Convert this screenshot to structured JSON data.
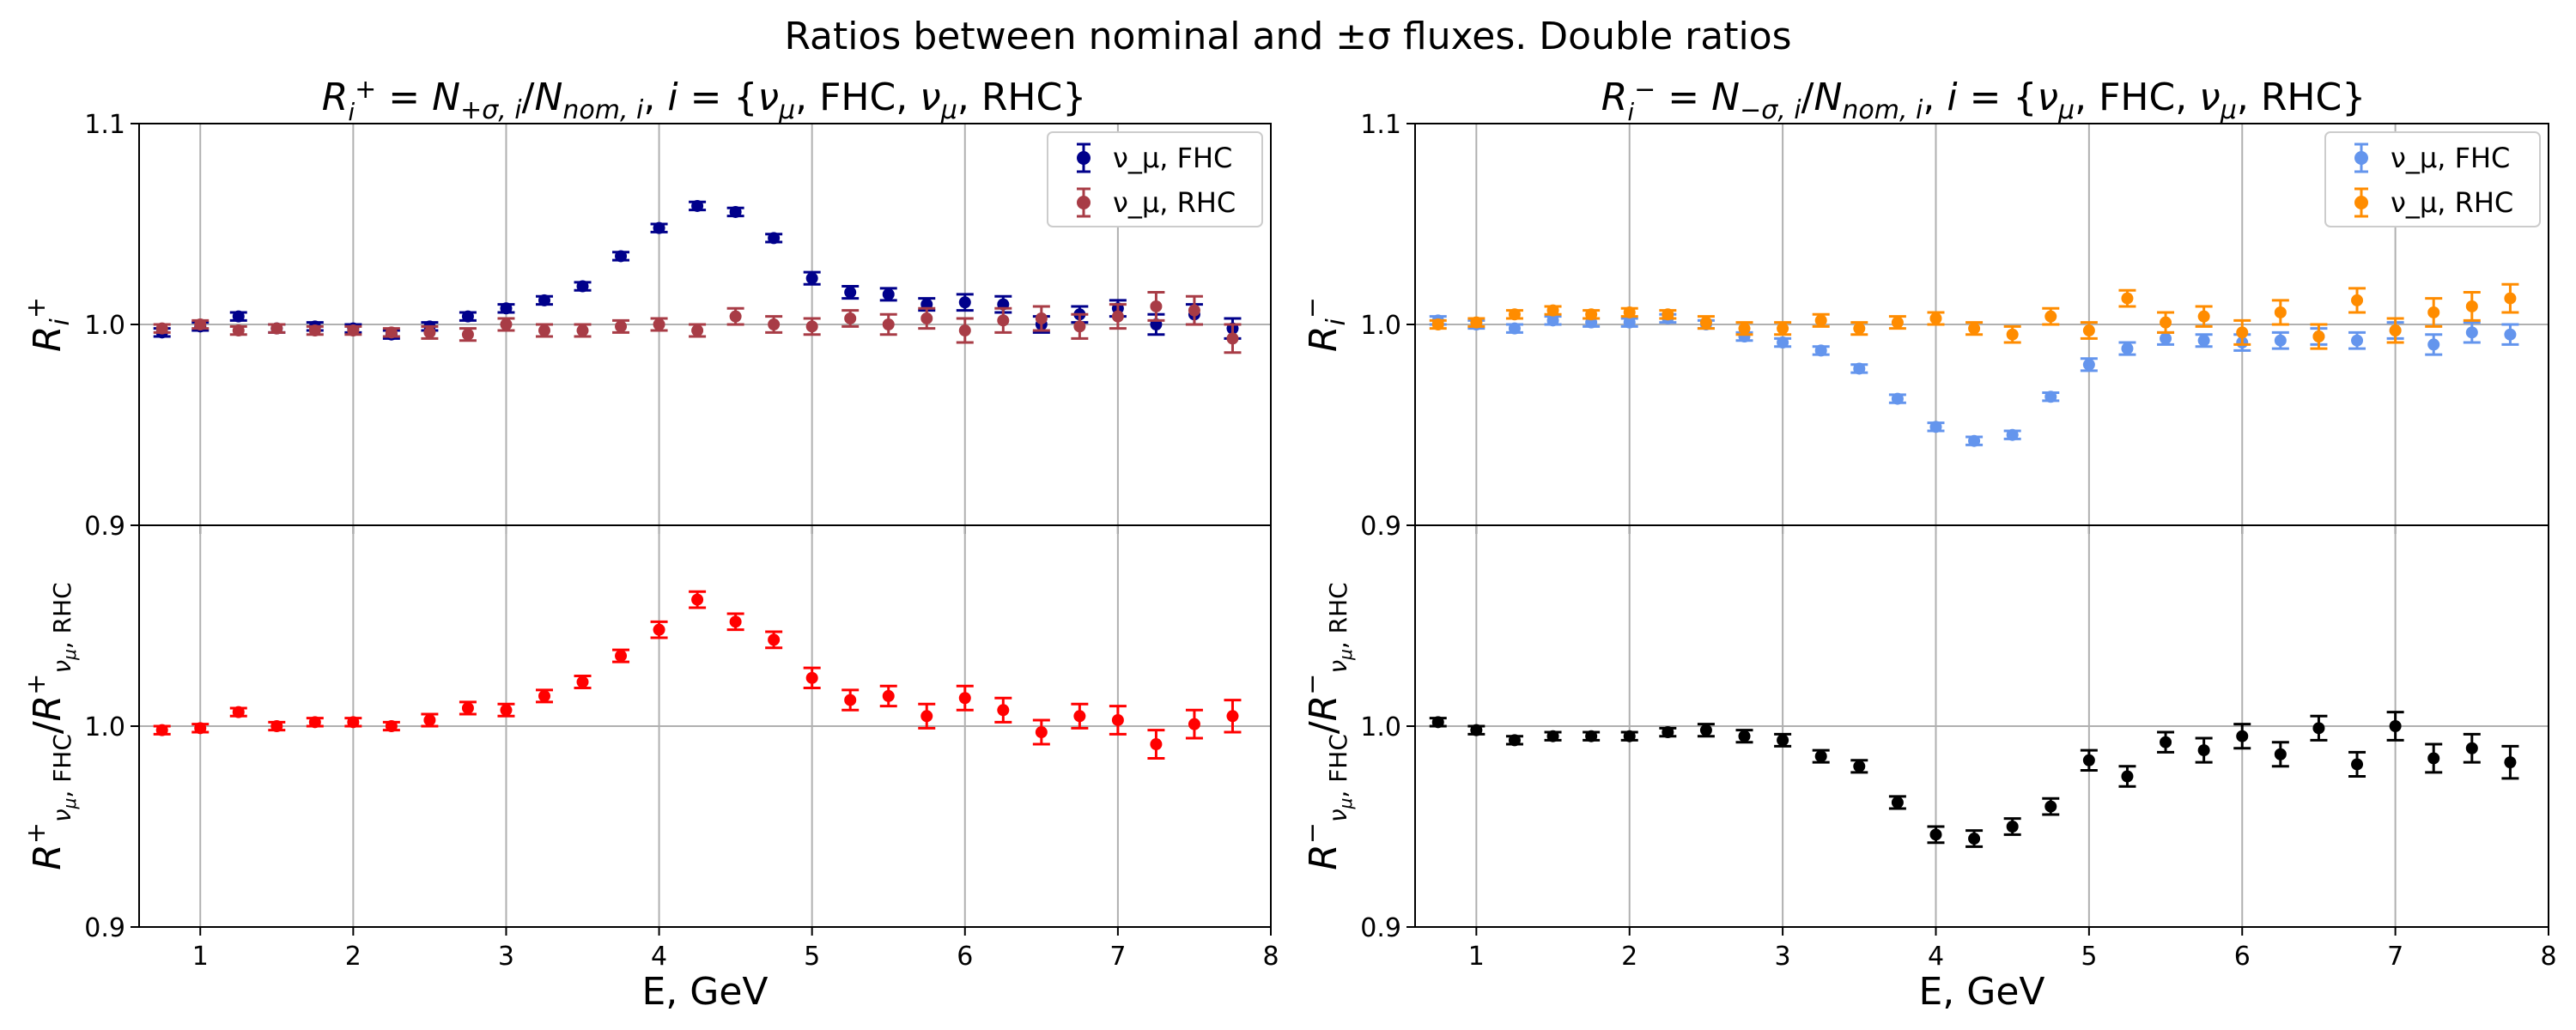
{
  "figure": {
    "title": "Ratios between nominal and ±σ fluxes. Double ratios"
  },
  "chart_data": [
    {
      "type": "scatter",
      "panel": "left-top",
      "title": "R_i^+ = N_{+σ,i}/N_{nom,i}, i = {ν_μ,FHC, ν_μ,RHC}",
      "xlabel": "",
      "ylabel": "R_i^+",
      "xlim": [
        0.6,
        8.0
      ],
      "ylim": [
        0.9,
        1.1
      ],
      "grid": true,
      "legend_position": "top-right",
      "x": [
        0.75,
        1.0,
        1.25,
        1.5,
        1.75,
        2.0,
        2.25,
        2.5,
        2.75,
        3.0,
        3.25,
        3.5,
        3.75,
        4.0,
        4.25,
        4.5,
        4.75,
        5.0,
        5.25,
        5.5,
        5.75,
        6.0,
        6.25,
        6.5,
        6.75,
        7.0,
        7.25,
        7.5,
        7.75
      ],
      "series": [
        {
          "name": "ν_μ, FHC",
          "color": "#00008b",
          "values": [
            0.996,
            0.999,
            1.004,
            0.998,
            0.999,
            0.998,
            0.995,
            0.999,
            1.004,
            1.008,
            1.012,
            1.019,
            1.034,
            1.048,
            1.059,
            1.056,
            1.043,
            1.023,
            1.016,
            1.015,
            1.01,
            1.011,
            1.01,
            1.0,
            1.005,
            1.008,
            1.0,
            1.005,
            0.998
          ],
          "errors": [
            0.002,
            0.002,
            0.002,
            0.002,
            0.002,
            0.002,
            0.002,
            0.002,
            0.002,
            0.002,
            0.002,
            0.002,
            0.002,
            0.002,
            0.002,
            0.002,
            0.002,
            0.003,
            0.003,
            0.003,
            0.003,
            0.004,
            0.004,
            0.004,
            0.004,
            0.004,
            0.005,
            0.005,
            0.005
          ]
        },
        {
          "name": "ν_μ, RHC",
          "color": "#a83c46",
          "values": [
            0.998,
            1.0,
            0.997,
            0.998,
            0.997,
            0.997,
            0.996,
            0.996,
            0.995,
            1.0,
            0.997,
            0.997,
            0.999,
            1.0,
            0.997,
            1.004,
            1.0,
            0.999,
            1.003,
            1.0,
            1.003,
            0.997,
            1.002,
            1.003,
            0.999,
            1.004,
            1.009,
            1.007,
            0.993
          ],
          "errors": [
            0.002,
            0.002,
            0.002,
            0.002,
            0.002,
            0.002,
            0.002,
            0.003,
            0.003,
            0.003,
            0.003,
            0.003,
            0.003,
            0.003,
            0.003,
            0.004,
            0.004,
            0.004,
            0.004,
            0.005,
            0.005,
            0.006,
            0.006,
            0.006,
            0.006,
            0.006,
            0.007,
            0.007,
            0.007
          ]
        }
      ]
    },
    {
      "type": "scatter",
      "panel": "left-bottom",
      "title": "",
      "xlabel": "E, GeV",
      "ylabel": "R^+_{ν_μ,FHC}/R^+_{ν_μ,RHC}",
      "xlim": [
        0.6,
        8.0
      ],
      "ylim": [
        0.9,
        1.1
      ],
      "grid": true,
      "x": [
        0.75,
        1.0,
        1.25,
        1.5,
        1.75,
        2.0,
        2.25,
        2.5,
        2.75,
        3.0,
        3.25,
        3.5,
        3.75,
        4.0,
        4.25,
        4.5,
        4.75,
        5.0,
        5.25,
        5.5,
        5.75,
        6.0,
        6.25,
        6.5,
        6.75,
        7.0,
        7.25,
        7.5,
        7.75
      ],
      "series": [
        {
          "color": "#ff0000",
          "values": [
            0.998,
            0.999,
            1.007,
            1.0,
            1.002,
            1.002,
            1.0,
            1.003,
            1.009,
            1.008,
            1.015,
            1.022,
            1.035,
            1.048,
            1.063,
            1.052,
            1.043,
            1.024,
            1.013,
            1.015,
            1.005,
            1.014,
            1.008,
            0.997,
            1.005,
            1.003,
            0.991,
            1.001,
            1.005
          ],
          "errors": [
            0.002,
            0.002,
            0.002,
            0.002,
            0.002,
            0.002,
            0.002,
            0.003,
            0.003,
            0.003,
            0.003,
            0.003,
            0.003,
            0.004,
            0.004,
            0.004,
            0.004,
            0.005,
            0.005,
            0.005,
            0.006,
            0.006,
            0.006,
            0.006,
            0.006,
            0.007,
            0.007,
            0.007,
            0.008
          ]
        }
      ]
    },
    {
      "type": "scatter",
      "panel": "right-top",
      "title": "R_i^- = N_{-σ,i}/N_{nom,i}, i = {ν_μ,FHC, ν_μ,RHC}",
      "xlabel": "",
      "ylabel": "R_i^-",
      "xlim": [
        0.6,
        8.0
      ],
      "ylim": [
        0.9,
        1.1
      ],
      "grid": true,
      "legend_position": "top-right",
      "x": [
        0.75,
        1.0,
        1.25,
        1.5,
        1.75,
        2.0,
        2.25,
        2.5,
        2.75,
        3.0,
        3.25,
        3.5,
        3.75,
        4.0,
        4.25,
        4.5,
        4.75,
        5.0,
        5.25,
        5.5,
        5.75,
        6.0,
        6.25,
        6.5,
        6.75,
        7.0,
        7.25,
        7.5,
        7.75
      ],
      "series": [
        {
          "name": "ν_μ, FHC",
          "color": "#6495ed",
          "values": [
            1.002,
            1.0,
            0.998,
            1.002,
            1.001,
            1.001,
            1.003,
            1.0,
            0.994,
            0.991,
            0.987,
            0.978,
            0.963,
            0.949,
            0.942,
            0.945,
            0.964,
            0.98,
            0.988,
            0.993,
            0.992,
            0.991,
            0.992,
            0.994,
            0.992,
            0.997,
            0.99,
            0.996,
            0.995
          ],
          "errors": [
            0.002,
            0.002,
            0.002,
            0.002,
            0.002,
            0.002,
            0.002,
            0.002,
            0.002,
            0.002,
            0.002,
            0.002,
            0.002,
            0.002,
            0.002,
            0.002,
            0.002,
            0.003,
            0.003,
            0.003,
            0.003,
            0.004,
            0.004,
            0.004,
            0.004,
            0.004,
            0.005,
            0.005,
            0.005
          ]
        },
        {
          "name": "ν_μ, RHC",
          "color": "#ff8c00",
          "values": [
            1.0,
            1.001,
            1.005,
            1.007,
            1.005,
            1.006,
            1.005,
            1.001,
            0.998,
            0.998,
            1.002,
            0.998,
            1.001,
            1.003,
            0.998,
            0.995,
            1.004,
            0.997,
            1.013,
            1.001,
            1.004,
            0.996,
            1.006,
            0.994,
            1.012,
            0.997,
            1.006,
            1.009,
            1.013
          ],
          "errors": [
            0.002,
            0.002,
            0.002,
            0.002,
            0.002,
            0.002,
            0.002,
            0.003,
            0.003,
            0.003,
            0.003,
            0.003,
            0.003,
            0.003,
            0.003,
            0.004,
            0.004,
            0.004,
            0.004,
            0.005,
            0.005,
            0.006,
            0.006,
            0.006,
            0.006,
            0.006,
            0.007,
            0.007,
            0.007
          ]
        }
      ]
    },
    {
      "type": "scatter",
      "panel": "right-bottom",
      "title": "",
      "xlabel": "E, GeV",
      "ylabel": "R^-_{ν_μ,FHC}/R^-_{ν_μ,RHC}",
      "xlim": [
        0.6,
        8.0
      ],
      "ylim": [
        0.9,
        1.1
      ],
      "grid": true,
      "x": [
        0.75,
        1.0,
        1.25,
        1.5,
        1.75,
        2.0,
        2.25,
        2.5,
        2.75,
        3.0,
        3.25,
        3.5,
        3.75,
        4.0,
        4.25,
        4.5,
        4.75,
        5.0,
        5.25,
        5.5,
        5.75,
        6.0,
        6.25,
        6.5,
        6.75,
        7.0,
        7.25,
        7.5,
        7.75
      ],
      "series": [
        {
          "color": "#000000",
          "values": [
            1.002,
            0.998,
            0.993,
            0.995,
            0.995,
            0.995,
            0.997,
            0.998,
            0.995,
            0.993,
            0.985,
            0.98,
            0.962,
            0.946,
            0.944,
            0.95,
            0.96,
            0.983,
            0.975,
            0.992,
            0.988,
            0.995,
            0.986,
            0.999,
            0.981,
            1.0,
            0.984,
            0.989,
            0.982
          ],
          "errors": [
            0.002,
            0.002,
            0.002,
            0.002,
            0.002,
            0.002,
            0.002,
            0.003,
            0.003,
            0.003,
            0.003,
            0.003,
            0.003,
            0.004,
            0.004,
            0.004,
            0.004,
            0.005,
            0.005,
            0.005,
            0.006,
            0.006,
            0.006,
            0.006,
            0.006,
            0.007,
            0.007,
            0.007,
            0.008
          ]
        }
      ]
    }
  ]
}
